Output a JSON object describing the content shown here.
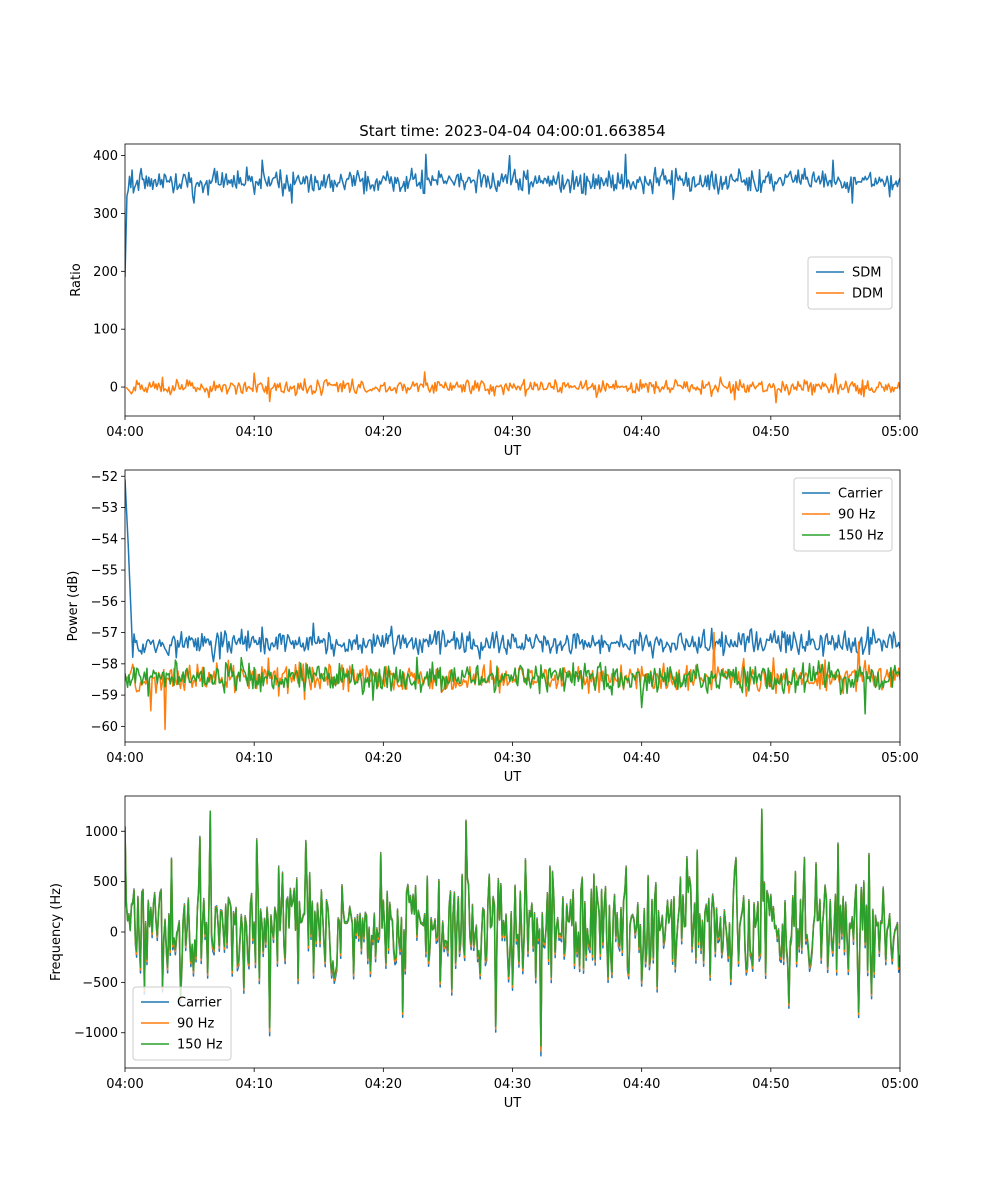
{
  "figure": {
    "title": "Start time: 2023-04-04 04:00:01.663854"
  },
  "chart_data": [
    {
      "type": "line",
      "xlabel": "UT",
      "ylabel": "Ratio",
      "xlim": [
        0,
        60
      ],
      "ylim": [
        -50,
        420
      ],
      "xticks": [
        0,
        10,
        20,
        30,
        40,
        50,
        60
      ],
      "xtick_labels": [
        "04:00",
        "04:10",
        "04:20",
        "04:30",
        "04:40",
        "04:50",
        "05:00"
      ],
      "yticks": [
        0,
        100,
        200,
        300,
        400
      ],
      "ytick_labels": [
        "0",
        "100",
        "200",
        "300",
        "400"
      ],
      "legend_position": "center-right",
      "series": [
        {
          "name": "SDM",
          "color": "#1f77b4",
          "kind": "noise",
          "base": 355,
          "amp": 14,
          "spikes": [
            [
              0.0,
              190
            ],
            [
              0.2,
              340
            ],
            [
              23.3,
              402
            ],
            [
              29.8,
              400
            ],
            [
              38.8,
              402
            ],
            [
              5.3,
              318
            ],
            [
              12.9,
              318
            ],
            [
              56.3,
              318
            ],
            [
              10.6,
              392
            ],
            [
              54.8,
              392
            ]
          ],
          "start": [
            [
              0,
              190
            ],
            [
              0.15,
              330
            ]
          ]
        },
        {
          "name": "DDM",
          "color": "#ff7f0e",
          "kind": "noise",
          "base": 0,
          "amp": 9,
          "spikes": [
            [
              10.0,
              24
            ],
            [
              11.2,
              -25
            ],
            [
              23.2,
              26
            ],
            [
              50.4,
              -27
            ],
            [
              55.0,
              23
            ],
            [
              6.5,
              -18
            ],
            [
              47.2,
              -22
            ]
          ],
          "start": []
        }
      ]
    },
    {
      "type": "line",
      "xlabel": "UT",
      "ylabel": "Power (dB)",
      "xlim": [
        0,
        60
      ],
      "ylim": [
        -60.5,
        -51.8
      ],
      "xticks": [
        0,
        10,
        20,
        30,
        40,
        50,
        60
      ],
      "xtick_labels": [
        "04:00",
        "04:10",
        "04:20",
        "04:30",
        "04:40",
        "04:50",
        "05:00"
      ],
      "yticks": [
        -60,
        -59,
        -58,
        -57,
        -56,
        -55,
        -54,
        -53,
        -52
      ],
      "ytick_labels": [
        "−60",
        "−59",
        "−58",
        "−57",
        "−56",
        "−55",
        "−54",
        "−53",
        "−52"
      ],
      "legend_position": "top-right",
      "series": [
        {
          "name": "Carrier",
          "color": "#1f77b4",
          "kind": "noise",
          "base": -57.35,
          "amp": 0.28,
          "spikes": [
            [
              14.6,
              -56.7
            ],
            [
              20.6,
              -56.8
            ],
            [
              44.8,
              -56.9
            ]
          ],
          "start": [
            [
              0,
              -52.1
            ],
            [
              0.25,
              -54.2
            ],
            [
              0.5,
              -56.7
            ]
          ]
        },
        {
          "name": "90 Hz",
          "color": "#ff7f0e",
          "kind": "noise",
          "base": -58.45,
          "amp": 0.32,
          "spikes": [
            [
              3.1,
              -60.1
            ],
            [
              2.0,
              -59.5
            ],
            [
              45.6,
              -57.0
            ],
            [
              56.8,
              -57.3
            ]
          ],
          "start": [
            [
              0,
              -58.4
            ]
          ]
        },
        {
          "name": "150 Hz",
          "color": "#2ca02c",
          "kind": "noise",
          "base": -58.45,
          "amp": 0.32,
          "spikes": [
            [
              57.3,
              -59.6
            ],
            [
              40.0,
              -59.4
            ],
            [
              9.0,
              -57.8
            ]
          ],
          "start": [
            [
              0,
              -58.3
            ]
          ]
        }
      ]
    },
    {
      "type": "line",
      "xlabel": "UT",
      "ylabel": "Frequency (Hz)",
      "xlim": [
        0,
        60
      ],
      "ylim": [
        -1350,
        1350
      ],
      "xticks": [
        0,
        10,
        20,
        30,
        40,
        50,
        60
      ],
      "xtick_labels": [
        "04:00",
        "04:10",
        "04:20",
        "04:30",
        "04:40",
        "04:50",
        "05:00"
      ],
      "yticks": [
        -1000,
        -500,
        0,
        500,
        1000
      ],
      "ytick_labels": [
        "−1000",
        "−500",
        "0",
        "500",
        "1000"
      ],
      "legend_position": "bottom-left",
      "series": [
        {
          "name": "Carrier",
          "color": "#1f77b4",
          "kind": "freq",
          "offset": -55,
          "spikes": [
            [
              32.2,
              -1230
            ],
            [
              11.2,
              -1030
            ],
            [
              6.6,
              1180
            ],
            [
              49.3,
              1200
            ]
          ],
          "start": [
            [
              0,
              1040
            ]
          ]
        },
        {
          "name": "90 Hz",
          "color": "#ff7f0e",
          "kind": "freq",
          "offset": -25,
          "spikes": [
            [
              32.2,
              -1180
            ],
            [
              11.2,
              -990
            ],
            [
              6.6,
              1190
            ],
            [
              49.3,
              1210
            ]
          ],
          "start": [
            [
              0,
              1045
            ]
          ]
        },
        {
          "name": "150 Hz",
          "color": "#2ca02c",
          "kind": "freq",
          "offset": 0,
          "spikes": [
            [
              32.2,
              -1130
            ],
            [
              11.2,
              -950
            ],
            [
              6.6,
              1200
            ],
            [
              49.3,
              1220
            ]
          ],
          "start": [
            [
              0,
              1050
            ]
          ]
        }
      ]
    }
  ]
}
